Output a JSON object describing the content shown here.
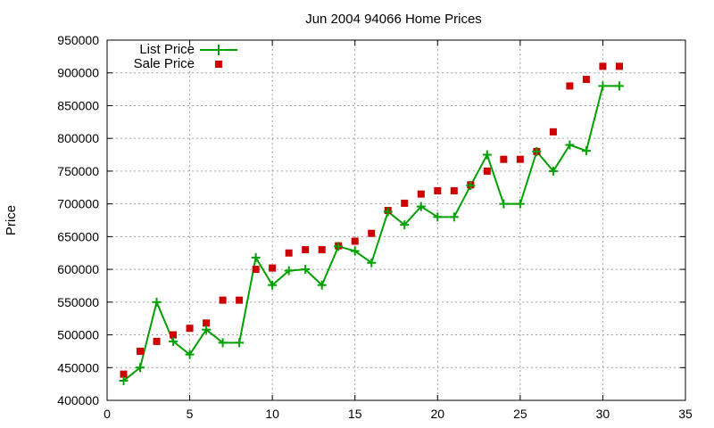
{
  "chart_data": {
    "type": "line",
    "title": "Jun 2004 94066 Home Prices",
    "xlabel": "",
    "ylabel": "Price",
    "xlim": [
      0,
      35
    ],
    "ylim": [
      400000,
      950000
    ],
    "x_ticks": [
      0,
      5,
      10,
      15,
      20,
      25,
      30,
      35
    ],
    "y_ticks": [
      400000,
      450000,
      500000,
      550000,
      600000,
      650000,
      700000,
      750000,
      800000,
      850000,
      900000,
      950000
    ],
    "grid": true,
    "legend_position": "top-left",
    "series": [
      {
        "name": "List Price",
        "style": "line-with-plus-markers",
        "color": "#00a000",
        "x": [
          1,
          2,
          3,
          4,
          5,
          6,
          7,
          8,
          9,
          10,
          11,
          12,
          13,
          14,
          15,
          16,
          17,
          18,
          19,
          20,
          21,
          22,
          23,
          24,
          25,
          26,
          27,
          28,
          29,
          30,
          31
        ],
        "y": [
          430000,
          450000,
          550000,
          490000,
          470000,
          508000,
          488000,
          488000,
          618000,
          576000,
          598000,
          600000,
          576000,
          635000,
          628000,
          610000,
          688000,
          668000,
          696000,
          680000,
          680000,
          728000,
          775000,
          700000,
          700000,
          780000,
          750000,
          790000,
          781000,
          880000,
          880000
        ]
      },
      {
        "name": "Sale Price",
        "style": "square-markers",
        "color": "#cc0000",
        "x": [
          1,
          2,
          3,
          4,
          5,
          6,
          7,
          8,
          9,
          10,
          11,
          12,
          13,
          14,
          15,
          16,
          17,
          18,
          19,
          20,
          21,
          22,
          23,
          24,
          25,
          26,
          27,
          28,
          29,
          30,
          31
        ],
        "y": [
          440000,
          475000,
          490000,
          500000,
          510000,
          518000,
          553000,
          553000,
          600000,
          602000,
          625000,
          630000,
          630000,
          636000,
          643000,
          655000,
          690000,
          701000,
          715000,
          720000,
          720000,
          729000,
          750000,
          768000,
          768000,
          780000,
          810000,
          880000,
          890000,
          910000,
          910000
        ]
      }
    ]
  }
}
